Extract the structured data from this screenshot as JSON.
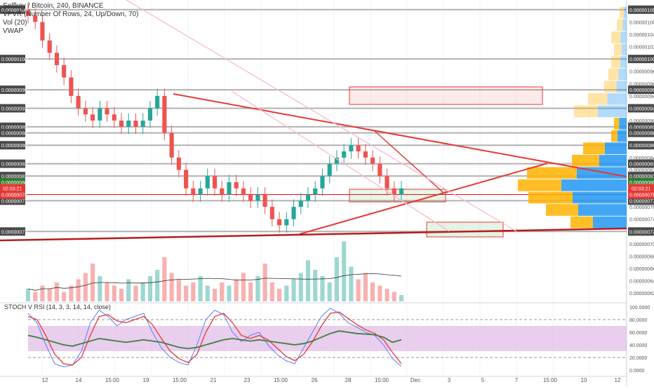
{
  "legend": {
    "symbol": "Selfkey / Bitcoin, 240, BINANCE",
    "vpvr": "VPVR (Number Of Rows, 24, Up/Down, 70)",
    "vol": "Vol (20)",
    "vwap": "VWAP"
  },
  "stoch_title": "STOCH V RSI (14, 3, 3, 14, 14, close)",
  "x_labels": [
    "12",
    "14",
    "15:00",
    "19",
    "15:00",
    "21",
    "23",
    "15:00",
    "26",
    "28",
    "15:00",
    "Dec",
    "3",
    "5",
    "7",
    "15:00",
    "10",
    "12"
  ],
  "price_scale": {
    "ticks": [
      "0.00000108",
      "0.00000106",
      "0.00000104",
      "0.00000102",
      "0.00000100",
      "0.00000098",
      "0.00000096",
      "0.00000095",
      "0.00000094",
      "0.00000092",
      "0.00000090",
      "0.00000089",
      "0.00000088",
      "0.00000086",
      "0.00000084",
      "0.00000083",
      "0.00000082",
      "0.00000081",
      "0.00000080",
      "0.00000078",
      "0.00000077",
      "0.00000076",
      "0.00000074",
      "0.00000072",
      "0.00000070",
      "0.00000068",
      "0.00000066",
      "0.00000064",
      "0.00000062"
    ],
    "highlighted": [
      "0.00000108",
      "0.00000100",
      "0.00000095",
      "0.00000092",
      "0.00000089",
      "0.00000088",
      "0.00000086",
      "0.00000083",
      "0.00000081",
      "0.00000077",
      "0.00000072"
    ],
    "current_price": "0.00000078",
    "current_price_alt": "0.00000080",
    "countdown": "02:03:21"
  },
  "stoch_scale": {
    "ticks": [
      "100.0000",
      "80.0000",
      "60.0000",
      "40.0000",
      "20.0000",
      "0.0000"
    ]
  },
  "colors": {
    "up": "#26a69a",
    "down": "#ef5350",
    "trendline": "#e53935",
    "support": "#b71c1c",
    "stoch_k": "#5c7cfa",
    "stoch_d": "#e53935",
    "rsi": "#3f7f3f",
    "band": "#e1bee7",
    "level_line": "#9e9e9e"
  },
  "chart_data": [
    {
      "type": "candlestick",
      "title": "Selfkey / Bitcoin, 240, BINANCE",
      "ylim": [
        6.1e-07,
        1.09e-06
      ],
      "approx_closes": [
        1.07e-06,
        1.06e-06,
        1.03e-06,
        1.01e-06,
        9.9e-07,
        9.7e-07,
        9.4e-07,
        9.2e-07,
        9.1e-07,
        9e-07,
        9.2e-07,
        9.1e-07,
        9e-07,
        8.9e-07,
        9e-07,
        8.9e-07,
        9e-07,
        9.2e-07,
        9.4e-07,
        8.8e-07,
        8.4e-07,
        8.2e-07,
        7.9e-07,
        7.8e-07,
        7.9e-07,
        8.1e-07,
        7.9e-07,
        7.8e-07,
        8e-07,
        7.9e-07,
        7.8e-07,
        7.7e-07,
        7.8e-07,
        7.6e-07,
        7.4e-07,
        7.3e-07,
        7.4e-07,
        7.6e-07,
        7.7e-07,
        7.8e-07,
        7.9e-07,
        8.1e-07,
        8.3e-07,
        8.4e-07,
        8.5e-07,
        8.6e-07,
        8.5e-07,
        8.4e-07,
        8.3e-07,
        8.1e-07,
        7.9e-07,
        7.8e-07,
        7.9e-07
      ],
      "levels": [
        "0.00000108",
        "0.00000100",
        "0.00000095",
        "0.00000092",
        "0.00000089",
        "0.00000088",
        "0.00000086",
        "0.00000083",
        "0.00000081",
        "0.00000077",
        "0.00000072"
      ]
    },
    {
      "type": "bar",
      "title": "Vol (20)",
      "approx_values": [
        4,
        3,
        5,
        4,
        6,
        3,
        5,
        7,
        9,
        12,
        8,
        6,
        5,
        4,
        7,
        5,
        6,
        8,
        10,
        14,
        9,
        7,
        5,
        6,
        8,
        5,
        4,
        6,
        5,
        7,
        9,
        6,
        8,
        12,
        6,
        4,
        5,
        7,
        9,
        13,
        10,
        8,
        6,
        14,
        19,
        11,
        7,
        9,
        6,
        5,
        4,
        3,
        2
      ]
    },
    {
      "type": "line",
      "title": "STOCH V RSI (14, 3, 3, 14, 14, close)",
      "ylim": [
        0,
        100
      ],
      "series": [
        {
          "name": "%K",
          "values": [
            90,
            75,
            40,
            10,
            5,
            8,
            30,
            75,
            95,
            85,
            70,
            80,
            85,
            90,
            60,
            35,
            20,
            12,
            8,
            40,
            80,
            95,
            88,
            60,
            45,
            55,
            60,
            40,
            25,
            15,
            10,
            35,
            60,
            85,
            98,
            90,
            75,
            68,
            60,
            55,
            40,
            18,
            6
          ]
        },
        {
          "name": "%D",
          "values": [
            85,
            80,
            55,
            25,
            10,
            8,
            20,
            55,
            85,
            88,
            78,
            75,
            80,
            85,
            72,
            50,
            30,
            18,
            12,
            25,
            60,
            85,
            90,
            75,
            55,
            50,
            55,
            48,
            35,
            22,
            15,
            25,
            45,
            70,
            90,
            92,
            82,
            72,
            64,
            58,
            48,
            28,
            10
          ]
        },
        {
          "name": "RSI",
          "values": [
            55,
            52,
            48,
            44,
            40,
            38,
            42,
            46,
            50,
            48,
            46,
            44,
            46,
            48,
            46,
            44,
            40,
            36,
            34,
            36,
            40,
            44,
            48,
            50,
            48,
            46,
            48,
            46,
            44,
            42,
            40,
            42,
            46,
            52,
            58,
            62,
            60,
            58,
            57,
            56,
            52,
            44,
            48
          ]
        }
      ]
    }
  ]
}
